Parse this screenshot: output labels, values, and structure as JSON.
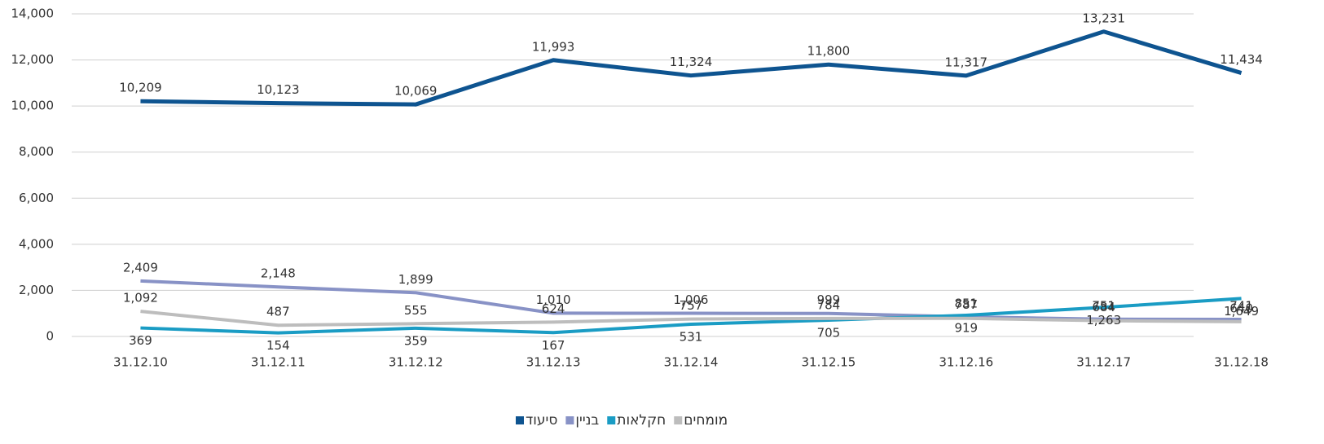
{
  "chart_data": {
    "type": "line",
    "categories": [
      "31.12.10",
      "31.12.11",
      "31.12.12",
      "31.12.13",
      "31.12.14",
      "31.12.15",
      "31.12.16",
      "31.12.17",
      "31.12.18"
    ],
    "series": [
      {
        "name": "סיעוד",
        "color": "#0e5490",
        "values": [
          10209,
          10123,
          10069,
          11993,
          11324,
          11800,
          11317,
          13231,
          11434
        ],
        "value_labels": [
          "10,209",
          "10,123",
          "10,069",
          "11,993",
          "11,324",
          "11,800",
          "11,317",
          "13,231",
          "11,434"
        ]
      },
      {
        "name": "בניין",
        "color": "#8892c6",
        "values": [
          2409,
          2148,
          1899,
          1010,
          1006,
          999,
          851,
          751,
          741
        ],
        "value_labels": [
          "2,409",
          "2,148",
          "1,899",
          "1,010",
          "1,006",
          "999",
          "851",
          "751",
          "741"
        ]
      },
      {
        "name": "חקלאות",
        "color": "#1a9cc4",
        "values": [
          369,
          154,
          359,
          167,
          531,
          705,
          919,
          1263,
          1649
        ],
        "value_labels": [
          "369",
          "154",
          "359",
          "167",
          "531",
          "705",
          "919",
          "1,263",
          "1,649"
        ]
      },
      {
        "name": "מומחים",
        "color": "#bdbdbd",
        "values": [
          1092,
          487,
          555,
          624,
          757,
          784,
          787,
          684,
          640
        ],
        "value_labels": [
          "1,092",
          "487",
          "555",
          "624",
          "757",
          "784",
          "787",
          "684",
          "640"
        ]
      }
    ],
    "ylim": [
      0,
      14000
    ],
    "yticks": [
      0,
      {
        "value": 2000,
        "label": "2,000"
      },
      {
        "value": 4000,
        "label": "4,000"
      },
      {
        "value": 6000,
        "label": "6,000"
      },
      {
        "value": 8000,
        "label": "8,000"
      },
      {
        "value": 10000,
        "label": "10,000"
      },
      {
        "value": 12000,
        "label": "12,000"
      },
      {
        "value": 14000,
        "label": "14,000"
      }
    ],
    "grid": true,
    "legend": "bottom"
  }
}
